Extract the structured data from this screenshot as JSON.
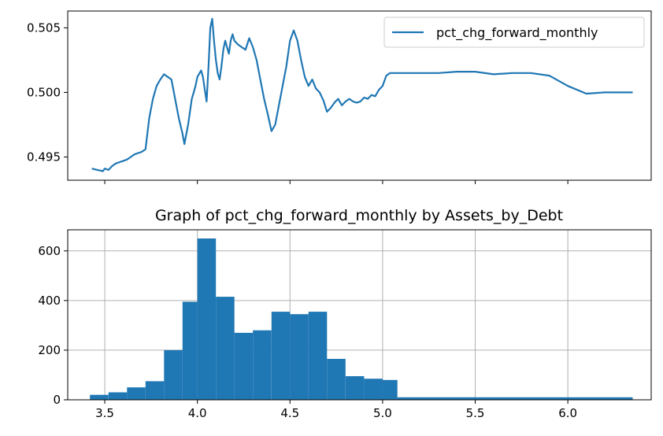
{
  "chart_data": [
    {
      "type": "line",
      "title": "",
      "xlabel": "",
      "ylabel": "",
      "xlim": [
        3.3,
        6.45
      ],
      "ylim": [
        0.4932,
        0.5063
      ],
      "yticks": [
        0.495,
        0.5,
        0.505
      ],
      "ytick_labels": [
        "0.495",
        "0.500",
        "0.505"
      ],
      "xticks": [
        3.5,
        4.0,
        4.5,
        5.0,
        5.5,
        6.0
      ],
      "show_xtick_labels": false,
      "grid": false,
      "legend": {
        "position": "top-right",
        "entries": [
          "pct_chg_forward_monthly"
        ]
      },
      "series": [
        {
          "name": "pct_chg_forward_monthly",
          "color": "#1f77b4",
          "x": [
            3.43,
            3.46,
            3.49,
            3.5,
            3.52,
            3.54,
            3.56,
            3.58,
            3.6,
            3.62,
            3.64,
            3.66,
            3.68,
            3.7,
            3.72,
            3.74,
            3.76,
            3.78,
            3.8,
            3.82,
            3.84,
            3.86,
            3.88,
            3.9,
            3.92,
            3.93,
            3.95,
            3.97,
            3.98,
            3.99,
            4.0,
            4.02,
            4.03,
            4.04,
            4.05,
            4.06,
            4.07,
            4.08,
            4.09,
            4.1,
            4.11,
            4.12,
            4.13,
            4.14,
            4.15,
            4.16,
            4.17,
            4.18,
            4.19,
            4.2,
            4.22,
            4.24,
            4.26,
            4.28,
            4.3,
            4.32,
            4.34,
            4.36,
            4.38,
            4.4,
            4.42,
            4.44,
            4.46,
            4.48,
            4.5,
            4.52,
            4.54,
            4.56,
            4.58,
            4.6,
            4.62,
            4.64,
            4.66,
            4.68,
            4.7,
            4.72,
            4.74,
            4.76,
            4.78,
            4.8,
            4.82,
            4.84,
            4.86,
            4.88,
            4.9,
            4.92,
            4.94,
            4.96,
            4.98,
            5.0,
            5.02,
            5.04,
            5.06,
            5.1,
            5.2,
            5.3,
            5.4,
            5.5,
            5.6,
            5.7,
            5.8,
            5.9,
            6.0,
            6.1,
            6.2,
            6.3,
            6.35
          ],
          "y": [
            0.4941,
            0.494,
            0.4939,
            0.4941,
            0.494,
            0.4943,
            0.4945,
            0.4946,
            0.4947,
            0.4948,
            0.495,
            0.4952,
            0.4953,
            0.4954,
            0.4956,
            0.498,
            0.4995,
            0.5005,
            0.501,
            0.5014,
            0.5012,
            0.501,
            0.4995,
            0.498,
            0.4968,
            0.496,
            0.4975,
            0.4995,
            0.5,
            0.5005,
            0.5012,
            0.5017,
            0.5012,
            0.5002,
            0.4993,
            0.502,
            0.505,
            0.5057,
            0.504,
            0.5025,
            0.5015,
            0.501,
            0.502,
            0.5033,
            0.504,
            0.5035,
            0.503,
            0.504,
            0.5045,
            0.504,
            0.5037,
            0.5035,
            0.5033,
            0.5042,
            0.5035,
            0.5025,
            0.501,
            0.4995,
            0.4983,
            0.497,
            0.4975,
            0.499,
            0.5005,
            0.502,
            0.504,
            0.5048,
            0.504,
            0.5025,
            0.5012,
            0.5005,
            0.501,
            0.5003,
            0.5,
            0.4994,
            0.4985,
            0.4988,
            0.4992,
            0.4995,
            0.499,
            0.4993,
            0.4995,
            0.4993,
            0.4992,
            0.4993,
            0.4996,
            0.4995,
            0.4998,
            0.4997,
            0.5002,
            0.5005,
            0.5013,
            0.5015,
            0.5015,
            0.5015,
            0.5015,
            0.5015,
            0.5016,
            0.5016,
            0.5014,
            0.5015,
            0.5015,
            0.5013,
            0.5005,
            0.4999,
            0.5,
            0.5,
            0.5
          ]
        }
      ]
    },
    {
      "type": "bar",
      "title": "Graph of pct_chg_forward_monthly by Assets_by_Debt",
      "xlabel": "",
      "ylabel": "",
      "xlim": [
        3.3,
        6.45
      ],
      "ylim": [
        0,
        685
      ],
      "yticks": [
        0,
        200,
        400,
        600
      ],
      "ytick_labels": [
        "0",
        "200",
        "400",
        "600"
      ],
      "xticks": [
        3.5,
        4.0,
        4.5,
        5.0,
        5.5,
        6.0
      ],
      "xtick_labels": [
        "3.5",
        "4.0",
        "4.5",
        "5.0",
        "5.5",
        "6.0"
      ],
      "grid": true,
      "color": "#1f77b4",
      "bin_edges": [
        3.42,
        3.52,
        3.62,
        3.72,
        3.82,
        3.92,
        4.0,
        4.1,
        4.2,
        4.3,
        4.4,
        4.5,
        4.6,
        4.7,
        4.8,
        4.9,
        5.0,
        5.08,
        6.35
      ],
      "counts": [
        20,
        30,
        50,
        75,
        200,
        395,
        650,
        415,
        270,
        280,
        355,
        345,
        355,
        165,
        95,
        85,
        80,
        10
      ]
    }
  ]
}
